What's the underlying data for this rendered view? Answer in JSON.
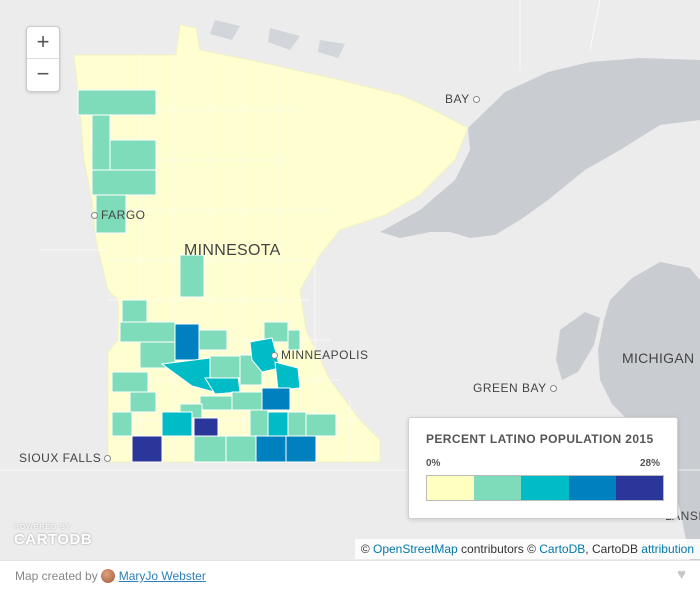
{
  "zoom": {
    "in_label": "+",
    "out_label": "−"
  },
  "places": {
    "bay": "BAY",
    "fargo": "FARGO",
    "minneapolis": "MINNEAPOLIS",
    "michigan": "MICHIGAN",
    "green_bay": "GREEN BAY",
    "sioux_falls": "SIOUX FALLS",
    "lansing_partial": "LANSI"
  },
  "state_label": "MINNESOTA",
  "legend": {
    "title": "PERCENT LATINO POPULATION 2015",
    "min_label": "0%",
    "max_label": "28%",
    "colors": [
      "#ffffbf",
      "#7fdcbb",
      "#00bcc6",
      "#0080bf",
      "#2a3699"
    ]
  },
  "attribution": {
    "prefix": "© ",
    "osm_link": "OpenStreetMap",
    "middle": " contributors © ",
    "cartodb_link": "CartoDB",
    "after": ", CartoDB ",
    "attribution_link": "attribution"
  },
  "logo": {
    "powered_by": "POWERED BY",
    "name": "CARTODB"
  },
  "footer": {
    "created_by": "Map created by",
    "author": "MaryJo Webster"
  },
  "colors": {
    "land": "#ececec",
    "water": "#c9cdd1",
    "state": "#fefed0",
    "border": "#ffffff"
  },
  "icons": {
    "heart": "heart-icon",
    "avatar": "avatar"
  }
}
